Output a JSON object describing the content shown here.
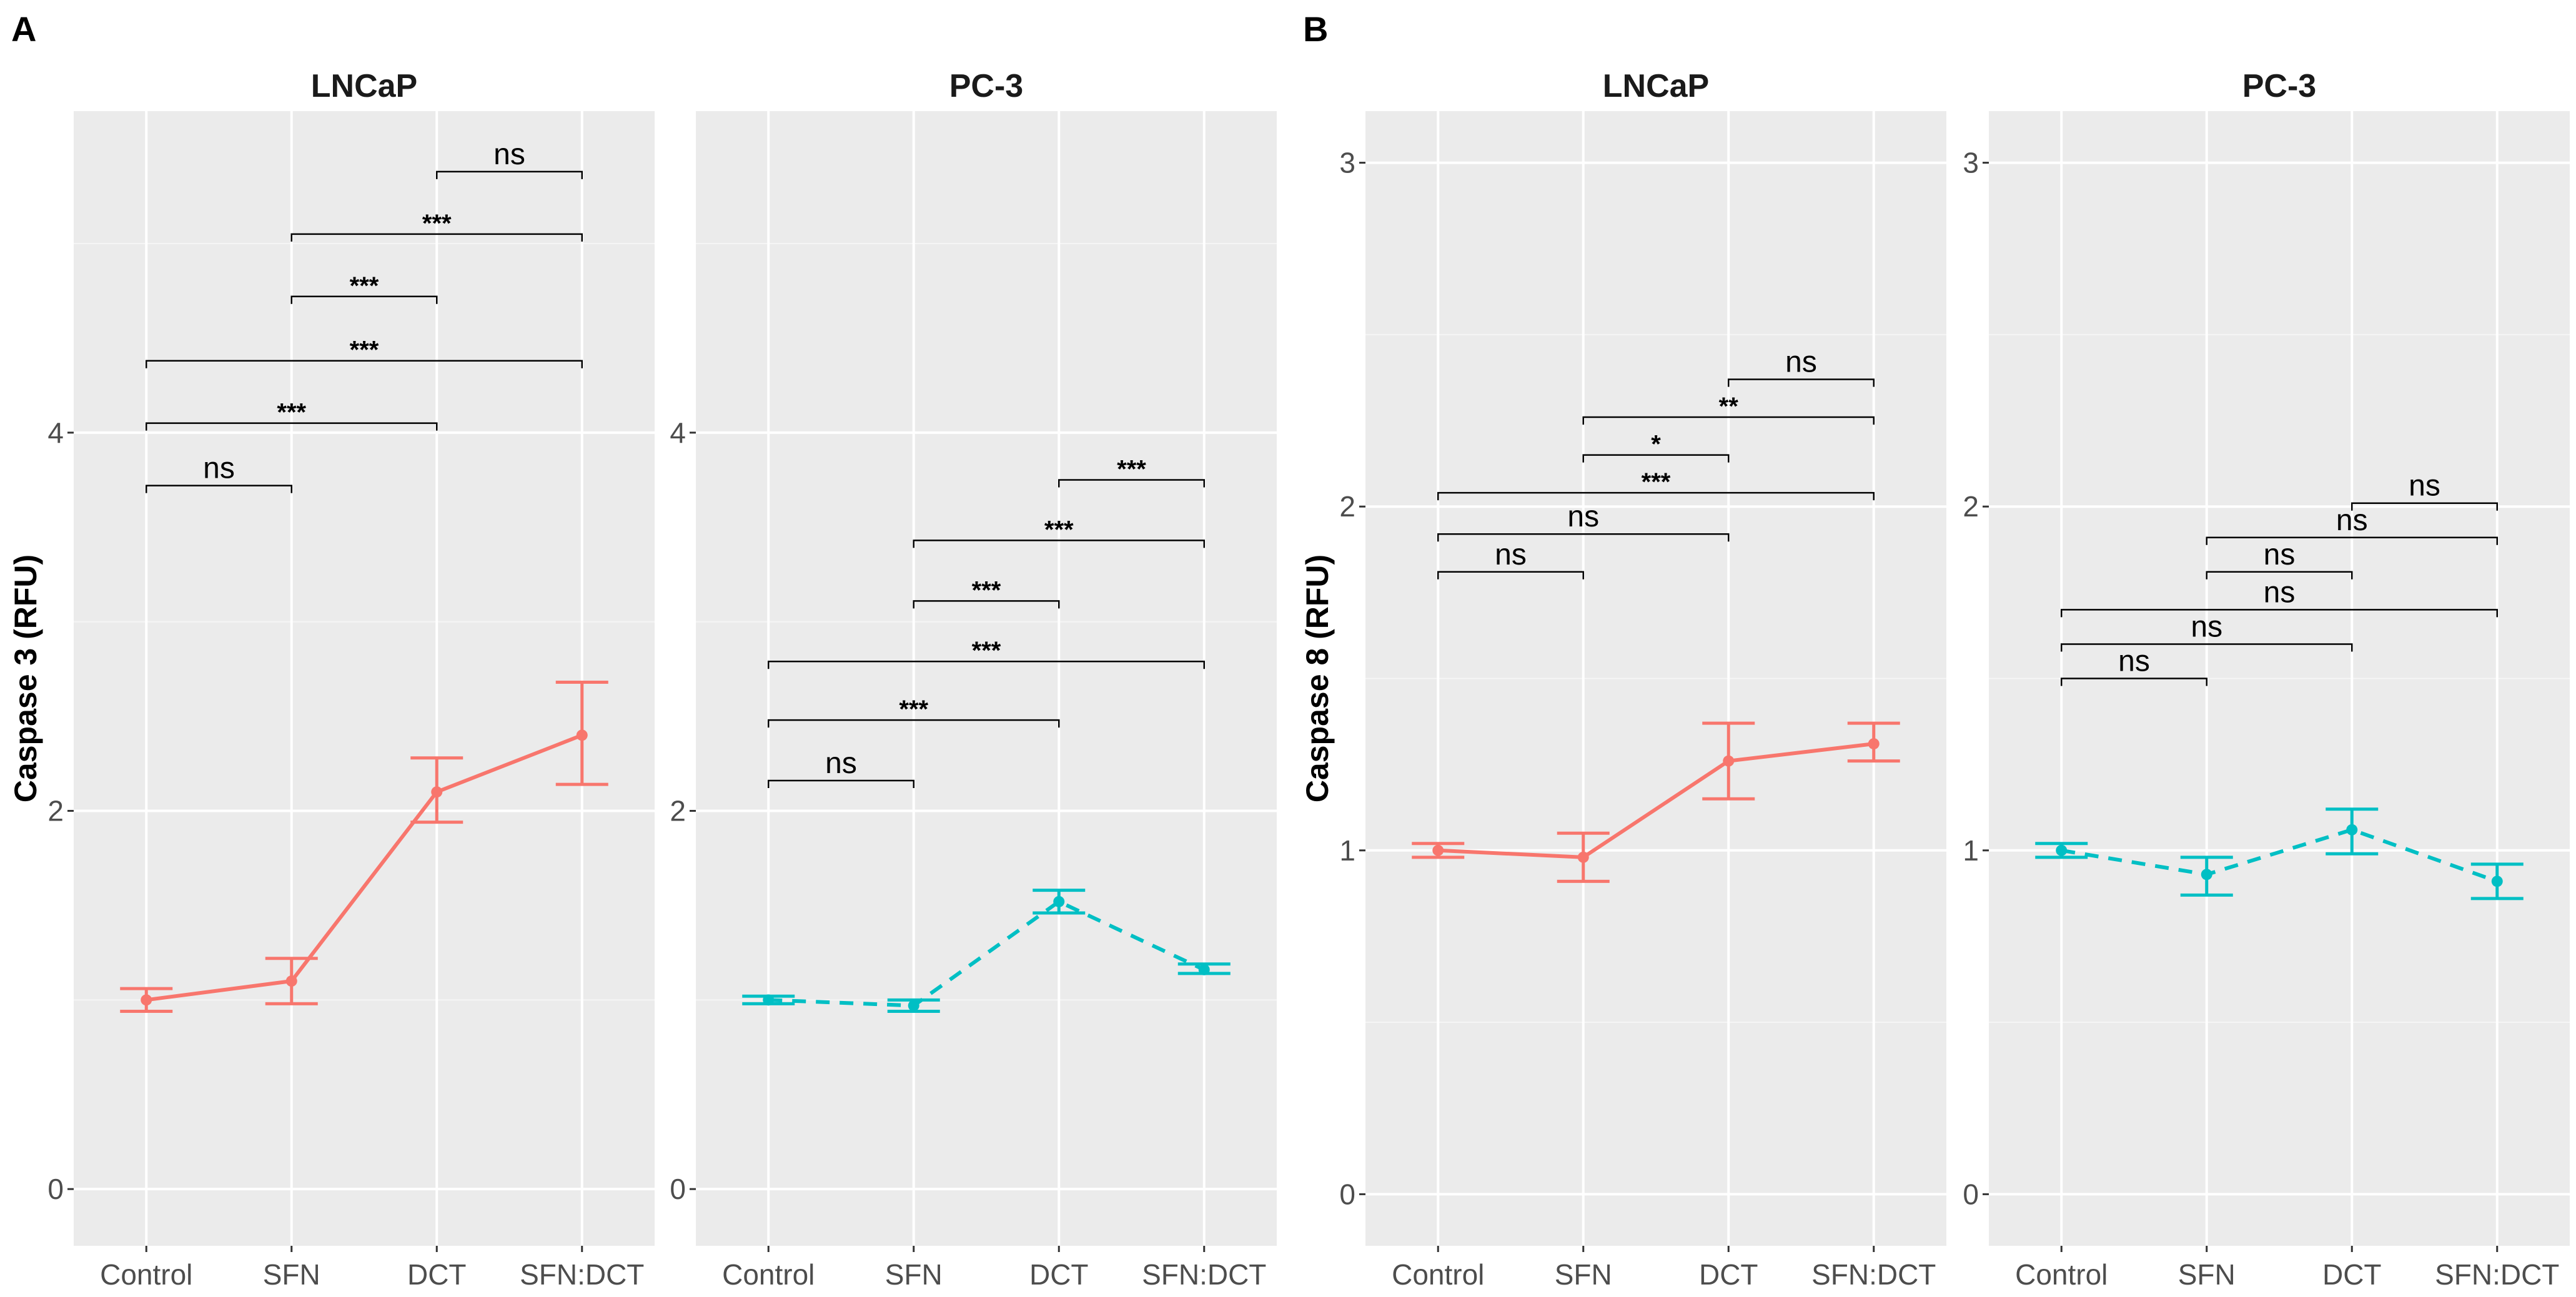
{
  "chart_data": [
    {
      "panel_label": "A",
      "type": "line",
      "ylabel": "Caspase 3 (RFU)",
      "ylim": [
        -0.3,
        5.7
      ],
      "yticks": [
        0,
        2,
        4
      ],
      "categories": [
        "Control",
        "SFN",
        "DCT",
        "SFN:DCT"
      ],
      "facets": [
        {
          "title": "LNCaP",
          "series": [
            {
              "name": "LNCaP",
              "color": "#F8766D",
              "linestyle": "solid",
              "values": [
                1.0,
                1.1,
                2.1,
                2.4
              ],
              "error_low": [
                0.94,
                0.98,
                1.94,
                2.14
              ],
              "error_high": [
                1.06,
                1.22,
                2.28,
                2.68
              ]
            }
          ],
          "comparisons": [
            {
              "from": "Control",
              "to": "SFN",
              "label": "ns",
              "y": 3.72
            },
            {
              "from": "Control",
              "to": "DCT",
              "label": "***",
              "y": 4.05
            },
            {
              "from": "Control",
              "to": "SFN:DCT",
              "label": "***",
              "y": 4.38
            },
            {
              "from": "SFN",
              "to": "DCT",
              "label": "***",
              "y": 4.72
            },
            {
              "from": "SFN",
              "to": "SFN:DCT",
              "label": "***",
              "y": 5.05
            },
            {
              "from": "DCT",
              "to": "SFN:DCT",
              "label": "ns",
              "y": 5.38
            }
          ]
        },
        {
          "title": "PC-3",
          "series": [
            {
              "name": "PC-3",
              "color": "#00BFC4",
              "linestyle": "dashed",
              "values": [
                1.0,
                0.97,
                1.52,
                1.16
              ],
              "error_low": [
                0.98,
                0.94,
                1.46,
                1.14
              ],
              "error_high": [
                1.02,
                1.0,
                1.58,
                1.19
              ]
            }
          ],
          "comparisons": [
            {
              "from": "Control",
              "to": "SFN",
              "label": "ns",
              "y": 2.16
            },
            {
              "from": "Control",
              "to": "DCT",
              "label": "***",
              "y": 2.48
            },
            {
              "from": "Control",
              "to": "SFN:DCT",
              "label": "***",
              "y": 2.79
            },
            {
              "from": "SFN",
              "to": "DCT",
              "label": "***",
              "y": 3.11
            },
            {
              "from": "SFN",
              "to": "SFN:DCT",
              "label": "***",
              "y": 3.43
            },
            {
              "from": "DCT",
              "to": "SFN:DCT",
              "label": "***",
              "y": 3.75
            }
          ]
        }
      ]
    },
    {
      "panel_label": "B",
      "type": "line",
      "ylabel": "Caspase 8 (RFU)",
      "ylim": [
        -0.15,
        3.15
      ],
      "yticks": [
        0,
        1,
        2,
        3
      ],
      "categories": [
        "Control",
        "SFN",
        "DCT",
        "SFN:DCT"
      ],
      "facets": [
        {
          "title": "LNCaP",
          "series": [
            {
              "name": "LNCaP",
              "color": "#F8766D",
              "linestyle": "solid",
              "values": [
                1.0,
                0.98,
                1.26,
                1.31
              ],
              "error_low": [
                0.98,
                0.91,
                1.15,
                1.26
              ],
              "error_high": [
                1.02,
                1.05,
                1.37,
                1.37
              ]
            }
          ],
          "comparisons": [
            {
              "from": "Control",
              "to": "SFN",
              "label": "ns",
              "y": 1.81
            },
            {
              "from": "Control",
              "to": "DCT",
              "label": "ns",
              "y": 1.92
            },
            {
              "from": "Control",
              "to": "SFN:DCT",
              "label": "***",
              "y": 2.04
            },
            {
              "from": "SFN",
              "to": "DCT",
              "label": "*",
              "y": 2.15
            },
            {
              "from": "SFN",
              "to": "SFN:DCT",
              "label": "**",
              "y": 2.26
            },
            {
              "from": "DCT",
              "to": "SFN:DCT",
              "label": "ns",
              "y": 2.37
            }
          ]
        },
        {
          "title": "PC-3",
          "series": [
            {
              "name": "PC-3",
              "color": "#00BFC4",
              "linestyle": "dashed",
              "values": [
                1.0,
                0.93,
                1.06,
                0.91
              ],
              "error_low": [
                0.98,
                0.87,
                0.99,
                0.86
              ],
              "error_high": [
                1.02,
                0.98,
                1.12,
                0.96
              ]
            }
          ],
          "comparisons": [
            {
              "from": "Control",
              "to": "SFN",
              "label": "ns",
              "y": 1.5
            },
            {
              "from": "Control",
              "to": "DCT",
              "label": "ns",
              "y": 1.6
            },
            {
              "from": "Control",
              "to": "SFN:DCT",
              "label": "ns",
              "y": 1.7
            },
            {
              "from": "SFN",
              "to": "DCT",
              "label": "ns",
              "y": 1.81
            },
            {
              "from": "SFN",
              "to": "SFN:DCT",
              "label": "ns",
              "y": 1.91
            },
            {
              "from": "DCT",
              "to": "SFN:DCT",
              "label": "ns",
              "y": 2.01
            }
          ]
        }
      ]
    }
  ]
}
